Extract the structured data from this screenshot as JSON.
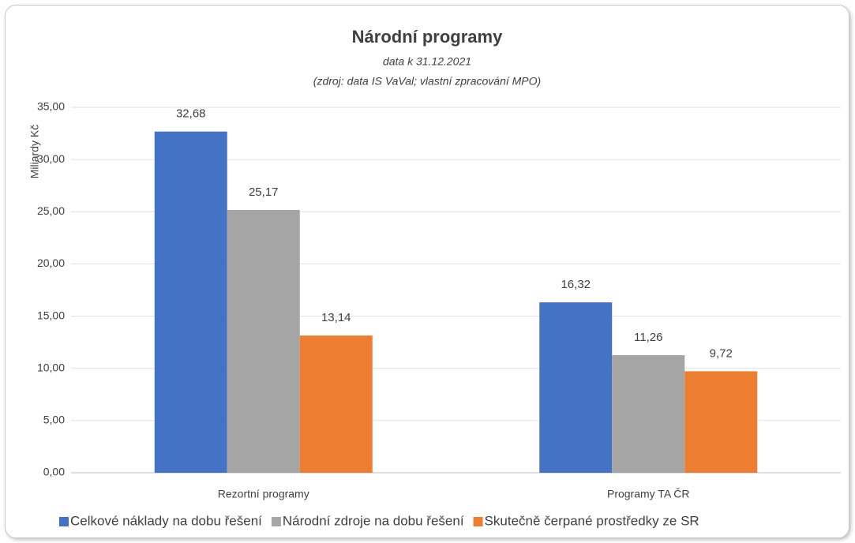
{
  "chart_data": {
    "type": "bar",
    "title": "Národní programy",
    "subtitle": "data  k 31.12.2021",
    "note": "(zdroj: data IS VaVal; vlastní zpracování MPO)",
    "y_label": "Miliardy Kč",
    "categories": [
      "Rezortní programy",
      "Programy TA ČR"
    ],
    "series": [
      {
        "name": "Celkové náklady na dobu řešení",
        "color": "#4472c4",
        "values": [
          32.68,
          16.32
        ],
        "value_labels": [
          "32,68",
          "16,32"
        ]
      },
      {
        "name": "Národní zdroje na dobu řešení",
        "color": "#a5a5a5",
        "values": [
          25.17,
          11.26
        ],
        "value_labels": [
          "25,17",
          "11,26"
        ]
      },
      {
        "name": "Skutečně čerpané prostředky ze SR",
        "color": "#ed7d31",
        "values": [
          13.14,
          9.72
        ],
        "value_labels": [
          "13,14",
          "9,72"
        ]
      }
    ],
    "ylim": [
      0,
      35
    ],
    "yticks": [
      {
        "value": 0,
        "label": "0,00"
      },
      {
        "value": 5,
        "label": "5,00"
      },
      {
        "value": 10,
        "label": "10,00"
      },
      {
        "value": 15,
        "label": "15,00"
      },
      {
        "value": 20,
        "label": "20,00"
      },
      {
        "value": 25,
        "label": "25,00"
      },
      {
        "value": 30,
        "label": "30,00"
      },
      {
        "value": 35,
        "label": "35,00"
      }
    ],
    "grid": true,
    "legend": "bottom"
  }
}
